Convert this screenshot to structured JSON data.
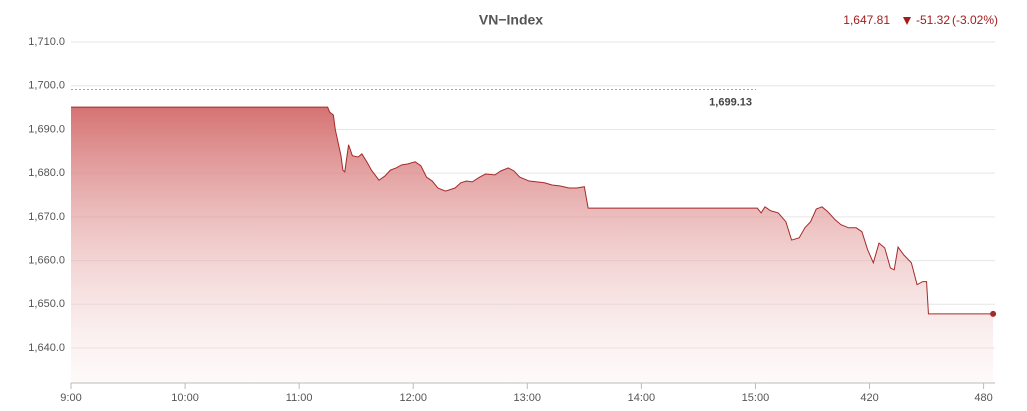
{
  "chart_data": {
    "type": "area",
    "title": "VN−Index",
    "last_label": "1,647.81",
    "change_label": "-51.32",
    "percent_label": "(-3.02%)",
    "reference": {
      "value": 1699.13,
      "label": "1,699.13"
    },
    "color": "#a52a2a",
    "grid": true,
    "xlim": [
      0,
      486
    ],
    "ylim": [
      1632,
      1713
    ],
    "xticks": [
      {
        "value": 0,
        "label": "9:00"
      },
      {
        "value": 60,
        "label": "10:00"
      },
      {
        "value": 120,
        "label": "11:00"
      },
      {
        "value": 180,
        "label": "12:00"
      },
      {
        "value": 240,
        "label": "13:00"
      },
      {
        "value": 300,
        "label": "14:00"
      },
      {
        "value": 360,
        "label": "15:00"
      },
      420,
      480
    ],
    "yticks": [
      {
        "value": 1640,
        "label": "1,640.0"
      },
      {
        "value": 1650,
        "label": "1,650.0"
      },
      {
        "value": 1660,
        "label": "1,660.0"
      },
      {
        "value": 1670,
        "label": "1,670.0"
      },
      {
        "value": 1680,
        "label": "1,680.0"
      },
      {
        "value": 1690,
        "label": "1,690.0"
      },
      {
        "value": 1700,
        "label": "1,700.0"
      },
      {
        "value": 1710,
        "label": "1,710.0"
      }
    ],
    "x": [
      0,
      135,
      136,
      138,
      139,
      142,
      143,
      144,
      146,
      148,
      151,
      153,
      156,
      158,
      162,
      165,
      168,
      171,
      174,
      177,
      181,
      184,
      187,
      190,
      193,
      197,
      202,
      205,
      208,
      211,
      215,
      218,
      223,
      226,
      230,
      233,
      236,
      241,
      245,
      249,
      253,
      257,
      262,
      266,
      270,
      272,
      361,
      363,
      365,
      368,
      372,
      376,
      379,
      383,
      386,
      389,
      392,
      395,
      398,
      402,
      405,
      409,
      413,
      416,
      419,
      422,
      425,
      428,
      431,
      433,
      435,
      438,
      442,
      445,
      448,
      450,
      451,
      485
    ],
    "values": [
      1695.1,
      1695.1,
      1694,
      1693.3,
      1690,
      1684,
      1680.7,
      1680.3,
      1686.5,
      1684,
      1683.7,
      1684.4,
      1682.3,
      1680.7,
      1678.4,
      1679.3,
      1680.7,
      1681.2,
      1681.9,
      1682.1,
      1682.6,
      1681.7,
      1679.1,
      1678.2,
      1676.6,
      1675.9,
      1676.6,
      1677.8,
      1678.2,
      1678,
      1679.1,
      1679.8,
      1679.6,
      1680.5,
      1681.2,
      1680.5,
      1679.1,
      1678.2,
      1678,
      1677.8,
      1677.3,
      1677.1,
      1676.6,
      1676.6,
      1676.9,
      1672,
      1672,
      1670.9,
      1672.3,
      1671.4,
      1670.9,
      1668.9,
      1664.7,
      1665.2,
      1667.5,
      1668.9,
      1671.8,
      1672.3,
      1671.2,
      1669.3,
      1668.2,
      1667.5,
      1667.5,
      1666.6,
      1662.5,
      1659.5,
      1664,
      1662.9,
      1658.3,
      1657.9,
      1663.1,
      1661.3,
      1659.5,
      1654.5,
      1655.2,
      1655.2,
      1647.81,
      1647.81
    ]
  }
}
